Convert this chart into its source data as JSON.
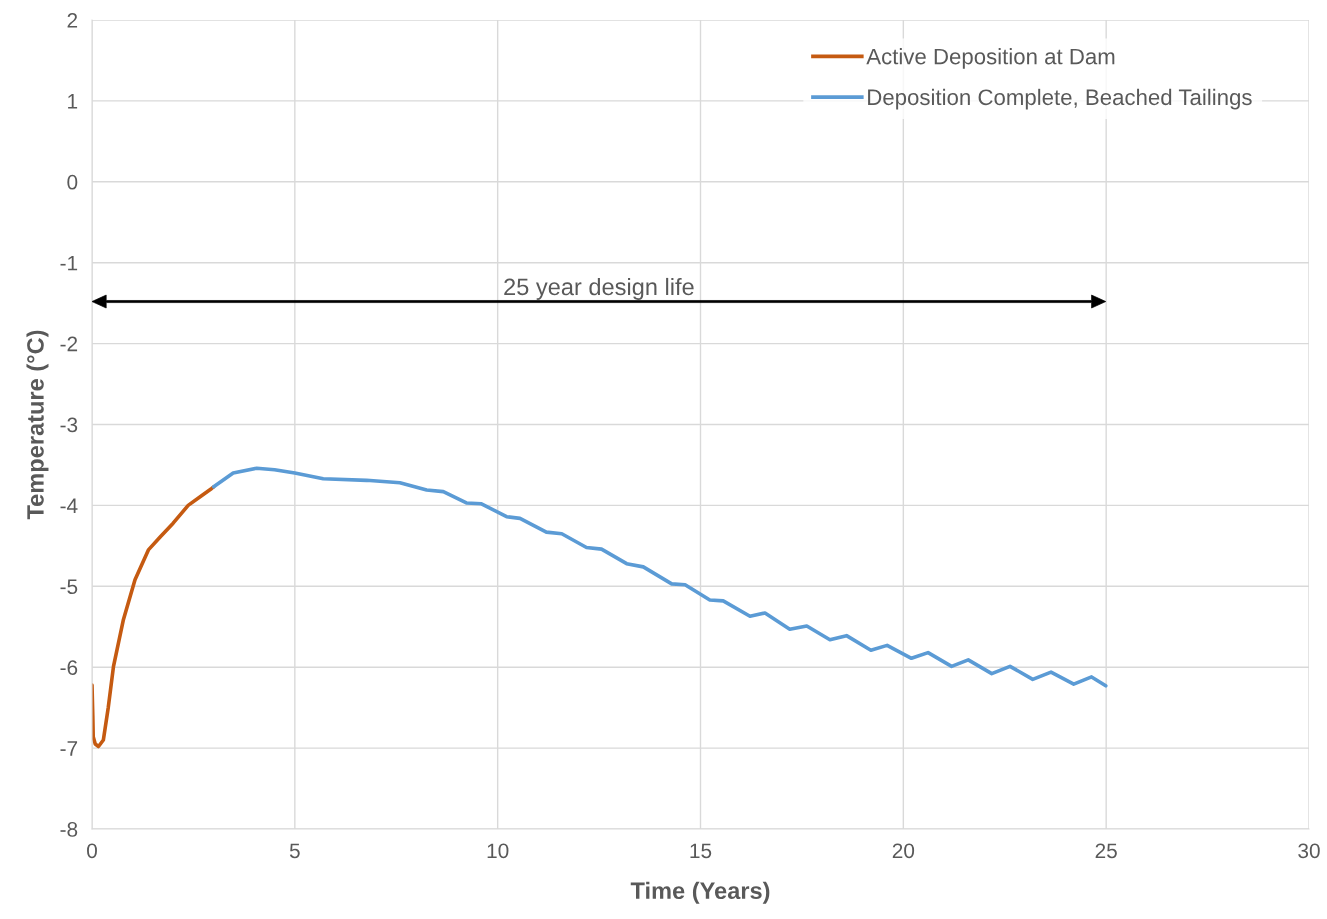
{
  "chart_data": {
    "type": "line",
    "xlabel": "Time (Years)",
    "ylabel": "Temperature (°C)",
    "xlim": [
      0,
      30
    ],
    "xticks": [
      0,
      5,
      10,
      15,
      20,
      25,
      30
    ],
    "ylim": [
      -8,
      2
    ],
    "yticks": [
      -8,
      -7,
      -6,
      -5,
      -4,
      -3,
      -2,
      -1,
      0,
      1,
      2
    ],
    "grid": true,
    "legend": "top right",
    "marker": "none",
    "line_style": "solid",
    "annotations": [
      "25 year design life"
    ],
    "series": [
      {
        "name": "Active Deposition at Dam",
        "color": "#c55a11",
        "x": [
          0,
          0.02,
          0.03,
          0.08,
          0.16,
          0.28,
          0.4,
          0.53,
          0.77,
          1.06,
          1.39,
          1.68,
          2.0,
          2.37,
          2.7,
          2.95,
          3.0
        ],
        "values": [
          -6.22,
          -6.6,
          -6.86,
          -6.95,
          -6.98,
          -6.9,
          -6.5,
          -5.99,
          -5.42,
          -4.92,
          -4.55,
          -4.39,
          -4.22,
          -4.0,
          -3.88,
          -3.79,
          -3.77
        ]
      },
      {
        "name": "Deposition Complete, Beached Tailings",
        "color": "#5b9bd5",
        "x": [
          3.0,
          3.48,
          4.06,
          4.5,
          5.0,
          5.7,
          6.77,
          7.59,
          8.25,
          8.66,
          9.23,
          9.6,
          10.22,
          10.55,
          11.2,
          11.58,
          12.19,
          12.56,
          13.18,
          13.59,
          14.29,
          14.62,
          15.23,
          15.56,
          16.22,
          16.59,
          17.2,
          17.62,
          18.19,
          18.6,
          19.2,
          19.6,
          20.2,
          20.61,
          21.19,
          21.6,
          22.18,
          22.63,
          23.19,
          23.64,
          24.2,
          24.64,
          24.99
        ],
        "values": [
          -3.77,
          -3.6,
          -3.54,
          -3.56,
          -3.6,
          -3.67,
          -3.69,
          -3.72,
          -3.81,
          -3.83,
          -3.97,
          -3.98,
          -4.14,
          -4.16,
          -4.33,
          -4.35,
          -4.52,
          -4.54,
          -4.72,
          -4.76,
          -4.97,
          -4.98,
          -5.17,
          -5.18,
          -5.37,
          -5.33,
          -5.53,
          -5.49,
          -5.66,
          -5.61,
          -5.79,
          -5.73,
          -5.89,
          -5.82,
          -5.99,
          -5.91,
          -6.08,
          -5.99,
          -6.15,
          -6.06,
          -6.21,
          -6.12,
          -6.23
        ]
      }
    ]
  }
}
